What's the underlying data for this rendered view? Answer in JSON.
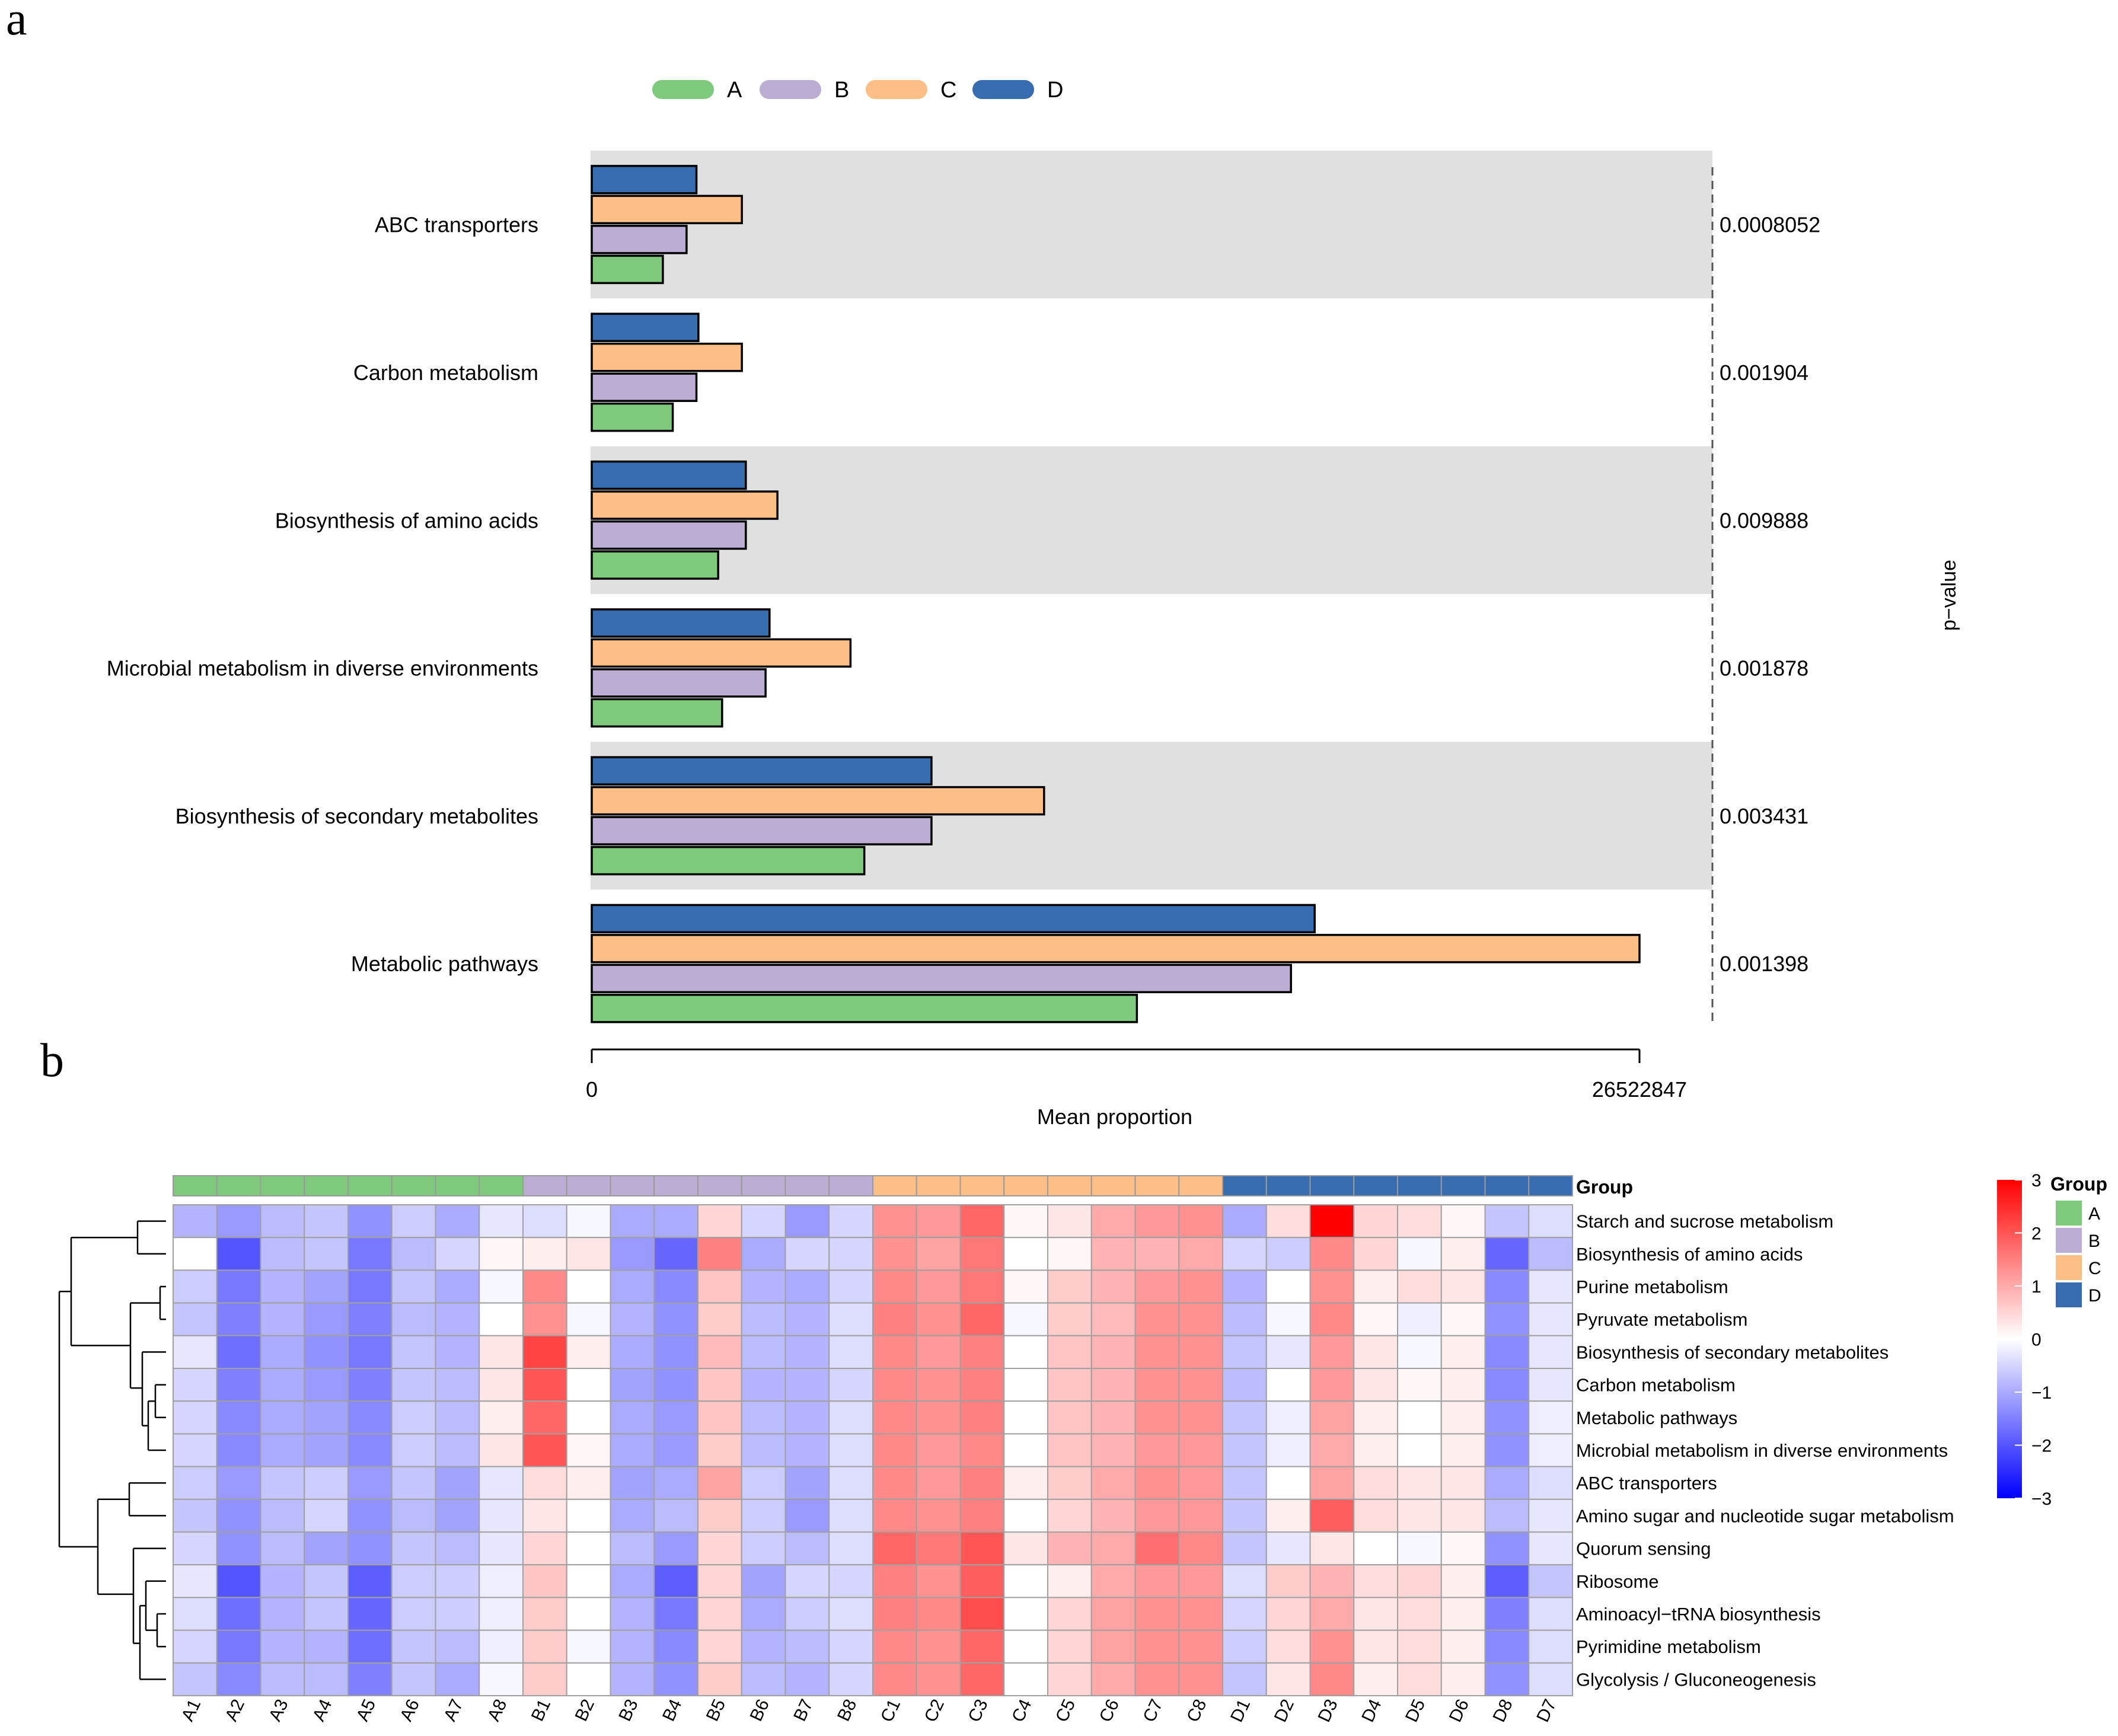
{
  "panel_labels": {
    "a": "a",
    "b": "b"
  },
  "chart_data": [
    {
      "type": "bar",
      "orientation": "horizontal",
      "legend_position": "top",
      "legend": [
        {
          "key": "A",
          "label": "A",
          "color": "#7ec97c"
        },
        {
          "key": "B",
          "label": "B",
          "color": "#bcadd4"
        },
        {
          "key": "C",
          "label": "C",
          "color": "#fdbf85"
        },
        {
          "key": "D",
          "label": "D",
          "color": "#386cb0"
        }
      ],
      "categories": [
        "ABC transporters",
        "Carbon metabolism",
        "Biosynthesis of amino acids",
        "Microbial metabolism in diverse environments",
        "Biosynthesis of secondary metabolites",
        "Metabolic pathways"
      ],
      "p_values": [
        "0.0008052",
        "0.001904",
        "0.009888",
        "0.001878",
        "0.003431",
        "0.001398"
      ],
      "series": [
        {
          "name": "D",
          "values": [
            2650000,
            2700000,
            3900000,
            4500000,
            8600000,
            18300000
          ]
        },
        {
          "name": "C",
          "values": [
            3800000,
            3800000,
            4700000,
            6550000,
            11450000,
            26522847
          ]
        },
        {
          "name": "B",
          "values": [
            2400000,
            2650000,
            3900000,
            4400000,
            8600000,
            17700000
          ]
        },
        {
          "name": "A",
          "values": [
            1800000,
            2050000,
            3200000,
            3300000,
            6900000,
            13800000
          ]
        }
      ],
      "xlim": [
        0,
        26522847
      ],
      "xticks": [
        "0",
        "26522847"
      ],
      "xlabel": "Mean proportion",
      "right_label": "p−value"
    },
    {
      "type": "heatmap",
      "group_label": "Group",
      "legend_title": "Group",
      "groups": [
        {
          "key": "A",
          "color": "#7ec97c"
        },
        {
          "key": "B",
          "color": "#bcadd4"
        },
        {
          "key": "C",
          "color": "#fdbf85"
        },
        {
          "key": "D",
          "color": "#386cb0"
        }
      ],
      "columns": [
        "A1",
        "A2",
        "A3",
        "A4",
        "A5",
        "A6",
        "A7",
        "A8",
        "B1",
        "B2",
        "B3",
        "B4",
        "B5",
        "B6",
        "B7",
        "B8",
        "C1",
        "C2",
        "C3",
        "C4",
        "C5",
        "C6",
        "C7",
        "C8",
        "D1",
        "D2",
        "D3",
        "D4",
        "D5",
        "D6",
        "D8",
        "D7"
      ],
      "column_groups": [
        "A",
        "A",
        "A",
        "A",
        "A",
        "A",
        "A",
        "A",
        "B",
        "B",
        "B",
        "B",
        "B",
        "B",
        "B",
        "B",
        "C",
        "C",
        "C",
        "C",
        "C",
        "C",
        "C",
        "C",
        "D",
        "D",
        "D",
        "D",
        "D",
        "D",
        "D",
        "D"
      ],
      "rows": [
        "Starch and sucrose metabolism",
        "Biosynthesis of amino acids",
        "Purine metabolism",
        "Pyruvate metabolism",
        "Biosynthesis of secondary metabolites",
        "Carbon metabolism",
        "Metabolic pathways",
        "Microbial metabolism in diverse environments",
        "ABC transporters",
        "Amino sugar and nucleotide sugar metabolism",
        "Quorum sensing",
        "Ribosome",
        "Aminoacyl−tRNA biosynthesis",
        "Pyrimidine metabolism",
        "Glycolysis / Gluconeogenesis"
      ],
      "values": [
        [
          -0.9,
          -1.2,
          -0.8,
          -0.7,
          -1.3,
          -0.6,
          -1.0,
          -0.3,
          -0.4,
          -0.1,
          -1.0,
          -1.0,
          0.5,
          -0.5,
          -1.2,
          -0.5,
          1.3,
          1.2,
          1.8,
          0.1,
          0.3,
          1.0,
          1.2,
          1.3,
          -1.0,
          0.4,
          3.0,
          0.5,
          0.4,
          0.1,
          -0.7,
          -0.4
        ],
        [
          0.0,
          -2.0,
          -0.8,
          -0.7,
          -1.6,
          -0.8,
          -0.5,
          0.1,
          0.2,
          0.3,
          -1.2,
          -1.8,
          1.5,
          -1.0,
          -0.5,
          -0.5,
          1.3,
          1.1,
          1.6,
          0.0,
          0.1,
          0.9,
          0.9,
          1.0,
          -0.5,
          -0.6,
          1.4,
          0.5,
          -0.1,
          0.2,
          -1.8,
          -0.8
        ],
        [
          -0.6,
          -1.6,
          -0.9,
          -1.1,
          -1.6,
          -0.7,
          -1.0,
          -0.1,
          1.4,
          0.0,
          -1.0,
          -1.4,
          0.7,
          -0.9,
          -1.0,
          -0.5,
          1.4,
          1.2,
          1.6,
          0.1,
          0.6,
          0.9,
          1.2,
          1.3,
          -0.9,
          0.0,
          1.3,
          0.2,
          0.4,
          0.3,
          -1.4,
          -0.3
        ],
        [
          -0.7,
          -1.5,
          -0.9,
          -1.2,
          -1.5,
          -0.8,
          -0.9,
          0.0,
          1.3,
          -0.1,
          -0.9,
          -1.3,
          0.6,
          -0.8,
          -0.9,
          -0.4,
          1.5,
          1.3,
          1.8,
          -0.1,
          0.6,
          0.8,
          1.3,
          1.3,
          -0.8,
          -0.1,
          1.4,
          0.1,
          -0.2,
          0.1,
          -1.3,
          -0.3
        ],
        [
          -0.3,
          -1.7,
          -1.0,
          -1.3,
          -1.6,
          -0.7,
          -0.9,
          0.3,
          2.2,
          0.2,
          -1.0,
          -1.3,
          0.8,
          -0.8,
          -0.9,
          -0.4,
          1.4,
          1.2,
          1.5,
          0.0,
          0.7,
          0.9,
          1.3,
          1.3,
          -0.7,
          -0.3,
          1.2,
          0.3,
          -0.1,
          0.2,
          -1.4,
          -0.3
        ],
        [
          -0.5,
          -1.5,
          -1.0,
          -1.2,
          -1.5,
          -0.7,
          -0.8,
          0.3,
          2.0,
          0.0,
          -1.1,
          -1.3,
          0.7,
          -0.9,
          -0.9,
          -0.5,
          1.4,
          1.3,
          1.5,
          0.0,
          0.7,
          0.9,
          1.3,
          1.3,
          -0.8,
          0.0,
          1.2,
          0.3,
          0.1,
          0.2,
          -1.4,
          -0.3
        ],
        [
          -0.5,
          -1.4,
          -1.0,
          -1.1,
          -1.4,
          -0.6,
          -0.8,
          0.2,
          1.8,
          0.0,
          -1.0,
          -1.2,
          0.7,
          -0.8,
          -0.9,
          -0.4,
          1.4,
          1.3,
          1.5,
          0.0,
          0.7,
          0.9,
          1.3,
          1.3,
          -0.7,
          -0.2,
          1.1,
          0.2,
          0.0,
          0.2,
          -1.3,
          -0.2
        ],
        [
          -0.5,
          -1.4,
          -1.0,
          -1.1,
          -1.4,
          -0.6,
          -0.8,
          0.3,
          2.0,
          0.1,
          -1.0,
          -1.2,
          0.6,
          -0.8,
          -0.9,
          -0.4,
          1.4,
          1.2,
          1.4,
          0.0,
          0.7,
          0.9,
          1.2,
          1.2,
          -0.7,
          -0.2,
          1.0,
          0.2,
          0.0,
          0.2,
          -1.3,
          -0.2
        ],
        [
          -0.6,
          -1.2,
          -0.7,
          -0.6,
          -1.2,
          -0.7,
          -1.1,
          -0.3,
          0.4,
          0.2,
          -1.1,
          -1.0,
          1.1,
          -0.6,
          -1.1,
          -0.4,
          1.4,
          1.2,
          1.5,
          0.2,
          0.6,
          1.0,
          1.3,
          1.2,
          -0.7,
          0.0,
          1.1,
          0.4,
          0.3,
          0.3,
          -1.0,
          -0.4
        ],
        [
          -0.7,
          -1.3,
          -0.8,
          -0.5,
          -1.3,
          -0.8,
          -1.1,
          -0.3,
          0.3,
          0.0,
          -1.0,
          -0.8,
          0.6,
          -0.6,
          -1.2,
          -0.4,
          1.4,
          1.3,
          1.5,
          0.0,
          0.5,
          0.9,
          1.2,
          1.2,
          -0.7,
          0.2,
          1.9,
          0.4,
          0.3,
          0.3,
          -0.8,
          -0.3
        ],
        [
          -0.5,
          -1.3,
          -0.8,
          -1.1,
          -1.3,
          -0.7,
          -0.8,
          -0.3,
          0.5,
          0.0,
          -0.8,
          -1.2,
          0.5,
          -0.6,
          -0.8,
          -0.4,
          1.8,
          1.6,
          2.0,
          0.3,
          0.9,
          1.0,
          1.7,
          1.4,
          -0.7,
          -0.3,
          0.3,
          0.0,
          -0.1,
          0.1,
          -1.3,
          -0.3
        ],
        [
          -0.3,
          -2.0,
          -0.9,
          -0.7,
          -1.9,
          -0.6,
          -0.6,
          -0.2,
          0.7,
          0.0,
          -1.0,
          -1.9,
          0.5,
          -1.1,
          -0.5,
          -0.5,
          1.5,
          1.3,
          1.9,
          0.0,
          0.2,
          1.0,
          1.2,
          1.2,
          -0.4,
          0.6,
          0.9,
          0.4,
          0.5,
          0.2,
          -1.9,
          -0.7
        ],
        [
          -0.4,
          -1.7,
          -0.9,
          -0.7,
          -1.8,
          -0.6,
          -0.6,
          -0.2,
          0.6,
          0.0,
          -0.9,
          -1.6,
          0.5,
          -1.0,
          -0.6,
          -0.4,
          1.5,
          1.4,
          2.1,
          0.0,
          0.5,
          1.1,
          1.3,
          1.3,
          -0.5,
          0.5,
          1.0,
          0.3,
          0.4,
          0.2,
          -1.5,
          -0.4
        ],
        [
          -0.5,
          -1.6,
          -0.9,
          -0.9,
          -1.7,
          -0.7,
          -0.8,
          -0.2,
          0.6,
          -0.1,
          -0.9,
          -1.4,
          0.5,
          -0.9,
          -0.8,
          -0.5,
          1.4,
          1.3,
          1.8,
          0.0,
          0.5,
          1.1,
          1.3,
          1.3,
          -0.6,
          0.4,
          1.3,
          0.3,
          0.4,
          0.2,
          -1.4,
          -0.4
        ],
        [
          -0.7,
          -1.4,
          -0.8,
          -0.8,
          -1.5,
          -0.7,
          -1.0,
          -0.1,
          0.6,
          0.0,
          -0.9,
          -1.3,
          0.6,
          -0.8,
          -0.9,
          -0.5,
          1.4,
          1.3,
          1.8,
          0.0,
          0.5,
          1.0,
          1.3,
          1.3,
          -0.7,
          0.3,
          1.4,
          0.2,
          0.4,
          0.2,
          -1.3,
          -0.4
        ]
      ],
      "color_scale": {
        "min": -3,
        "max": 3,
        "low": "#0000ff",
        "mid": "#ffffff",
        "high": "#ff0000"
      },
      "colorbar_ticks": [
        "3",
        "2",
        "1",
        "0",
        "−1",
        "−2",
        "−3"
      ],
      "colorbar_values": [
        3,
        2,
        1,
        0,
        -1,
        -2,
        -3
      ]
    }
  ]
}
